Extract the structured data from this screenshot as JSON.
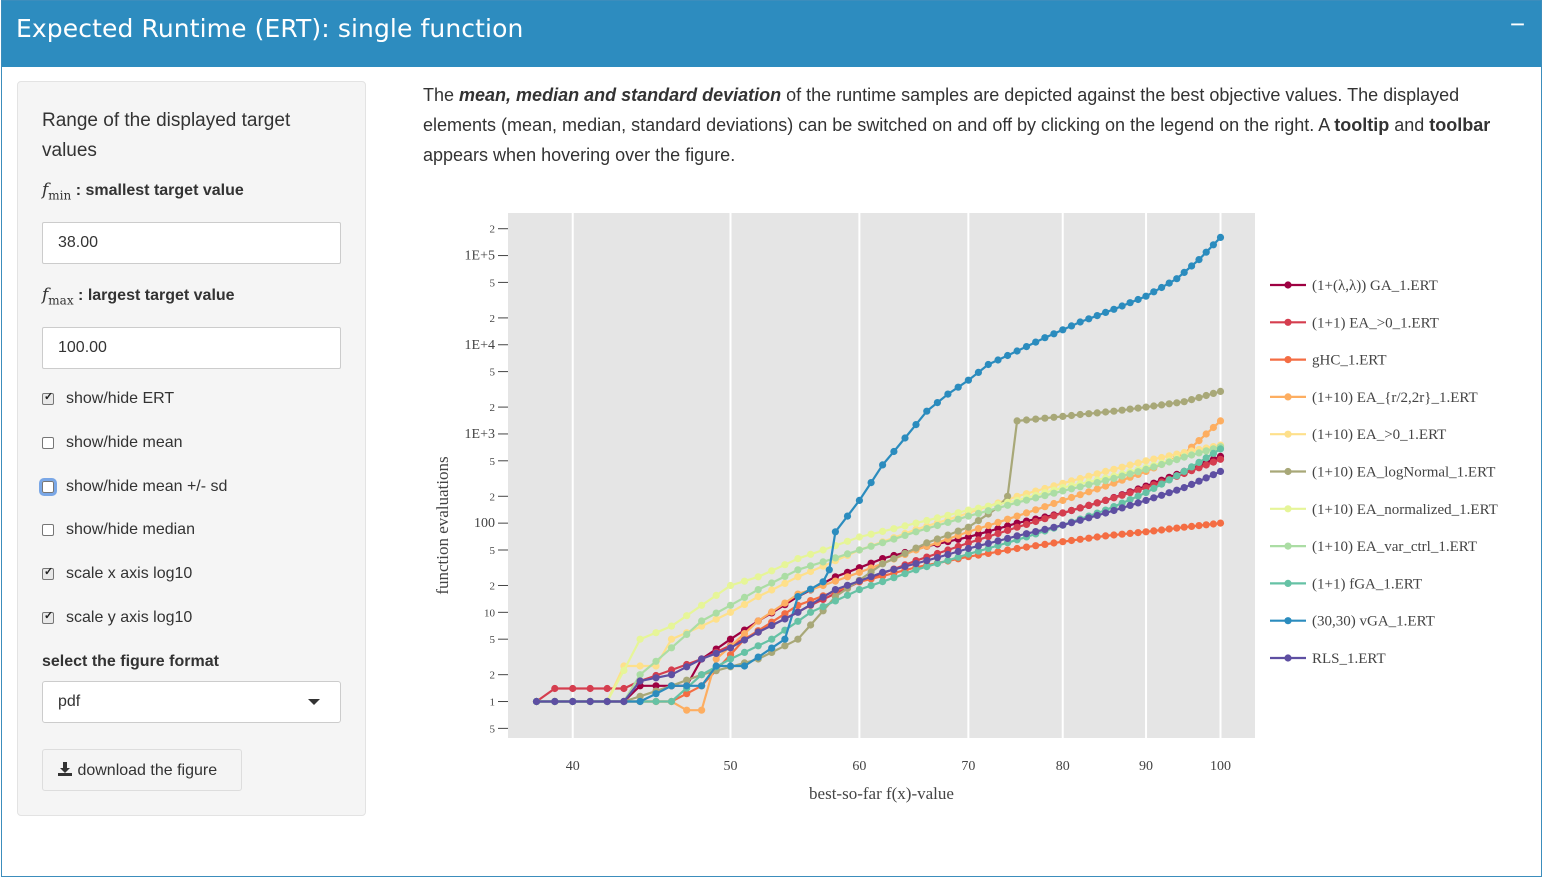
{
  "header": {
    "title": "Expected Runtime (ERT): single function",
    "collapse_icon": "−"
  },
  "sidebar": {
    "section_title": "Range of the displayed target values",
    "fmin": {
      "symbol": "f",
      "sub": "min",
      "label": " : smallest target value",
      "value": "38.00"
    },
    "fmax": {
      "symbol": "f",
      "sub": "max",
      "label": " : largest target value",
      "value": "100.00"
    },
    "checkboxes": [
      {
        "label": "show/hide ERT",
        "checked": true
      },
      {
        "label": "show/hide mean",
        "checked": false
      },
      {
        "label": "show/hide mean +/- sd",
        "checked": false
      },
      {
        "label": "show/hide median",
        "checked": false
      },
      {
        "label": "scale x axis log10",
        "checked": true
      },
      {
        "label": "scale y axis log10",
        "checked": true
      }
    ],
    "format_label": "select the figure format",
    "format_value": "pdf",
    "download_label": "download the figure"
  },
  "description": {
    "p1": "The ",
    "p1_bold": "mean, median and standard deviation",
    "p2": " of the runtime samples are depicted against the best objective values. The displayed elements (mean, median, standard deviations) can be switched on and off by clicking on the legend on the right. A ",
    "p2_bold1": "tooltip",
    "p3": " and ",
    "p3_bold2": "toolbar",
    "p4": " appears when hovering over the figure."
  },
  "chart_data": {
    "type": "line",
    "xlabel": "best-so-far f(x)-value",
    "ylabel": "function evaluations",
    "x_scale": "log",
    "y_scale": "log",
    "xlim": [
      36.5,
      105
    ],
    "ylim": [
      0.39,
      300000
    ],
    "x_ticks": [
      40,
      50,
      60,
      70,
      80,
      90,
      100
    ],
    "y_ticks": [
      {
        "v": 0.5,
        "t": "5"
      },
      {
        "v": 1,
        "t": "1"
      },
      {
        "v": 2,
        "t": "2"
      },
      {
        "v": 5,
        "t": "5"
      },
      {
        "v": 10,
        "t": "10"
      },
      {
        "v": 20,
        "t": "2"
      },
      {
        "v": 50,
        "t": "5"
      },
      {
        "v": 100,
        "t": "100"
      },
      {
        "v": 200,
        "t": "2"
      },
      {
        "v": 500,
        "t": "5"
      },
      {
        "v": 1000,
        "t": "1E+3"
      },
      {
        "v": 2000,
        "t": "2"
      },
      {
        "v": 5000,
        "t": "5"
      },
      {
        "v": 10000,
        "t": "1E+4"
      },
      {
        "v": 20000,
        "t": "2"
      },
      {
        "v": 50000,
        "t": "5"
      },
      {
        "v": 100000,
        "t": "1E+5"
      },
      {
        "v": 200000,
        "t": "2"
      }
    ],
    "grid": true,
    "legend_position": "right",
    "series": [
      {
        "name": "(1+(λ,λ)) GA_1.ERT",
        "color": "#9e0142",
        "points": [
          [
            38,
            1
          ],
          [
            43,
            1
          ],
          [
            44,
            1.5
          ],
          [
            47,
            1.5
          ],
          [
            48,
            3
          ],
          [
            50,
            5
          ],
          [
            52,
            8
          ],
          [
            55,
            15
          ],
          [
            58,
            25
          ],
          [
            62,
            40
          ],
          [
            66,
            55
          ],
          [
            70,
            70
          ],
          [
            75,
            100
          ],
          [
            80,
            130
          ],
          [
            85,
            180
          ],
          [
            90,
            260
          ],
          [
            95,
            380
          ],
          [
            100,
            560
          ]
        ]
      },
      {
        "name": "(1+1) EA_>0_1.ERT",
        "color": "#d53e4f",
        "points": [
          [
            38,
            1
          ],
          [
            39,
            1.4
          ],
          [
            43,
            1.4
          ],
          [
            44,
            1.7
          ],
          [
            48,
            3
          ],
          [
            52,
            6
          ],
          [
            56,
            12
          ],
          [
            60,
            22
          ],
          [
            65,
            38
          ],
          [
            70,
            60
          ],
          [
            75,
            90
          ],
          [
            80,
            130
          ],
          [
            85,
            180
          ],
          [
            90,
            250
          ],
          [
            95,
            360
          ],
          [
            100,
            520
          ]
        ]
      },
      {
        "name": "gHC_1.ERT",
        "color": "#f46d43",
        "points": [
          [
            38,
            1
          ],
          [
            46,
            1
          ],
          [
            48,
            1.5
          ],
          [
            51,
            5
          ],
          [
            55,
            12
          ],
          [
            60,
            22
          ],
          [
            65,
            32
          ],
          [
            70,
            42
          ],
          [
            75,
            52
          ],
          [
            80,
            62
          ],
          [
            85,
            72
          ],
          [
            90,
            80
          ],
          [
            95,
            90
          ],
          [
            100,
            100
          ]
        ]
      },
      {
        "name": "(1+10) EA_{r/2,2r}_1.ERT",
        "color": "#fdae61",
        "points": [
          [
            38,
            1
          ],
          [
            46,
            1
          ],
          [
            47,
            0.8
          ],
          [
            48,
            0.8
          ],
          [
            49,
            3
          ],
          [
            52,
            8
          ],
          [
            55,
            16
          ],
          [
            60,
            28
          ],
          [
            65,
            50
          ],
          [
            70,
            80
          ],
          [
            75,
            120
          ],
          [
            80,
            180
          ],
          [
            85,
            260
          ],
          [
            90,
            380
          ],
          [
            95,
            600
          ],
          [
            100,
            1400
          ]
        ]
      },
      {
        "name": "(1+10) EA_>0_1.ERT",
        "color": "#fee08b",
        "points": [
          [
            38,
            1
          ],
          [
            42,
            1
          ],
          [
            43,
            2.5
          ],
          [
            45,
            2.5
          ],
          [
            46,
            5
          ],
          [
            48,
            7
          ],
          [
            50,
            10
          ],
          [
            52,
            15
          ],
          [
            55,
            25
          ],
          [
            60,
            50
          ],
          [
            65,
            85
          ],
          [
            70,
            130
          ],
          [
            75,
            200
          ],
          [
            80,
            280
          ],
          [
            85,
            380
          ],
          [
            90,
            500
          ],
          [
            95,
            620
          ],
          [
            100,
            750
          ]
        ]
      },
      {
        "name": "(1+10) EA_logNormal_1.ERT",
        "color": "#a8a878",
        "points": [
          [
            38,
            1
          ],
          [
            43,
            1
          ],
          [
            46,
            1.5
          ],
          [
            48,
            2
          ],
          [
            52,
            3
          ],
          [
            55,
            5
          ],
          [
            58,
            15
          ],
          [
            62,
            35
          ],
          [
            66,
            60
          ],
          [
            70,
            90
          ],
          [
            73,
            150
          ],
          [
            74,
            200
          ],
          [
            75,
            1400
          ],
          [
            78,
            1500
          ],
          [
            82,
            1650
          ],
          [
            86,
            1800
          ],
          [
            90,
            2000
          ],
          [
            95,
            2300
          ],
          [
            100,
            3000
          ]
        ]
      },
      {
        "name": "(1+10) EA_normalized_1.ERT",
        "color": "#e6f598",
        "points": [
          [
            38,
            1
          ],
          [
            42,
            1
          ],
          [
            44,
            5
          ],
          [
            46,
            7
          ],
          [
            48,
            12
          ],
          [
            50,
            20
          ],
          [
            52,
            25
          ],
          [
            55,
            40
          ],
          [
            60,
            70
          ],
          [
            65,
            100
          ],
          [
            70,
            140
          ],
          [
            75,
            180
          ],
          [
            80,
            250
          ],
          [
            85,
            320
          ],
          [
            90,
            420
          ],
          [
            95,
            560
          ],
          [
            100,
            700
          ]
        ]
      },
      {
        "name": "(1+10) EA_var_ctrl_1.ERT",
        "color": "#abdda4",
        "points": [
          [
            38,
            1
          ],
          [
            43,
            1
          ],
          [
            44,
            2
          ],
          [
            46,
            4
          ],
          [
            48,
            8
          ],
          [
            50,
            12
          ],
          [
            52,
            18
          ],
          [
            55,
            30
          ],
          [
            60,
            50
          ],
          [
            65,
            80
          ],
          [
            70,
            120
          ],
          [
            75,
            170
          ],
          [
            80,
            230
          ],
          [
            85,
            300
          ],
          [
            90,
            400
          ],
          [
            95,
            550
          ],
          [
            100,
            720
          ]
        ]
      },
      {
        "name": "(1+1) fGA_1.ERT",
        "color": "#66c2a5",
        "points": [
          [
            38,
            1
          ],
          [
            46,
            1
          ],
          [
            48,
            2
          ],
          [
            50,
            3
          ],
          [
            53,
            5
          ],
          [
            56,
            10
          ],
          [
            60,
            18
          ],
          [
            65,
            30
          ],
          [
            70,
            45
          ],
          [
            75,
            65
          ],
          [
            80,
            95
          ],
          [
            85,
            140
          ],
          [
            90,
            220
          ],
          [
            95,
            380
          ],
          [
            100,
            680
          ]
        ]
      },
      {
        "name": "(30,30) vGA_1.ERT",
        "color": "#2b8cbe",
        "points": [
          [
            38,
            1
          ],
          [
            44,
            1
          ],
          [
            46,
            1.5
          ],
          [
            48,
            1.5
          ],
          [
            49,
            2.5
          ],
          [
            51,
            2.5
          ],
          [
            54,
            5
          ],
          [
            55,
            15
          ],
          [
            57,
            22
          ],
          [
            57.5,
            30
          ],
          [
            58,
            80
          ],
          [
            60,
            180
          ],
          [
            62,
            450
          ],
          [
            64,
            900
          ],
          [
            66,
            1800
          ],
          [
            68,
            2800
          ],
          [
            70,
            4000
          ],
          [
            72,
            6000
          ],
          [
            75,
            8500
          ],
          [
            78,
            12000
          ],
          [
            82,
            18000
          ],
          [
            86,
            25000
          ],
          [
            90,
            35000
          ],
          [
            94,
            55000
          ],
          [
            97,
            90000
          ],
          [
            100,
            160000
          ]
        ]
      },
      {
        "name": "RLS_1.ERT",
        "color": "#5e4fa2",
        "points": [
          [
            38,
            1
          ],
          [
            43,
            1
          ],
          [
            44,
            1.7
          ],
          [
            46,
            2
          ],
          [
            48,
            3
          ],
          [
            50,
            4
          ],
          [
            52,
            6
          ],
          [
            55,
            10
          ],
          [
            58,
            18
          ],
          [
            62,
            28
          ],
          [
            66,
            38
          ],
          [
            70,
            52
          ],
          [
            75,
            72
          ],
          [
            80,
            95
          ],
          [
            85,
            130
          ],
          [
            90,
            180
          ],
          [
            95,
            250
          ],
          [
            100,
            380
          ]
        ]
      }
    ]
  }
}
